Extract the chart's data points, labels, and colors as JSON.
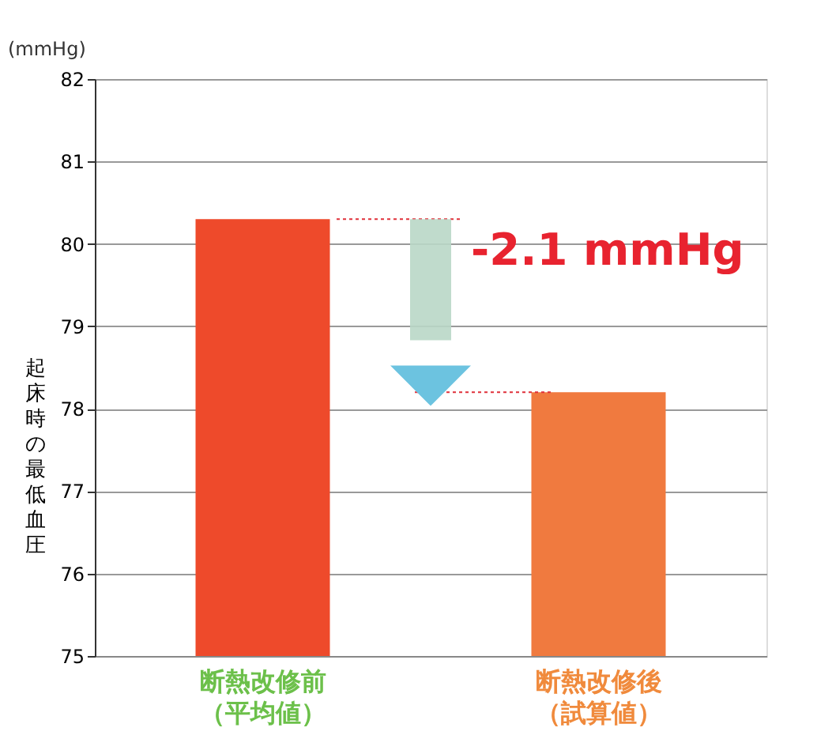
{
  "chart_data": {
    "type": "bar",
    "ylabel": "起床時の最低血圧",
    "categories": [
      "断熱改修前（平均値）",
      "断熱改修後（試算値）"
    ],
    "values": [
      80.3,
      78.2
    ],
    "colors": [
      "#ee4a2b",
      "#f07a3f"
    ],
    "ylim": [
      75,
      82
    ],
    "yticks": [
      75,
      76,
      77,
      78,
      79,
      80,
      81,
      82
    ],
    "grid": "y",
    "ref_lines": [
      {
        "axis": "y",
        "value": 80.3,
        "color": "#e0303a",
        "line_style": "dotted"
      },
      {
        "axis": "y",
        "value": 78.2,
        "color": "#e0303a",
        "line_style": "dotted"
      }
    ],
    "annotations": [
      "(mmHg)",
      "-2.1 mmHg"
    ]
  }
}
